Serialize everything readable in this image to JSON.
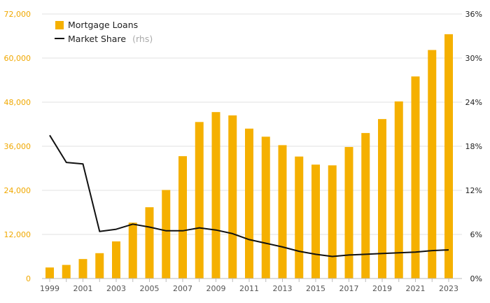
{
  "chart_data": {
    "type": "bar",
    "x": [
      1999,
      2000,
      2001,
      2002,
      2003,
      2004,
      2005,
      2006,
      2007,
      2008,
      2009,
      2010,
      2011,
      2012,
      2013,
      2014,
      2015,
      2016,
      2017,
      2018,
      2019,
      2020,
      2021,
      2022,
      2023
    ],
    "x_tick_labels": [
      "1999",
      "2001",
      "2003",
      "2005",
      "2007",
      "2009",
      "2011",
      "2013",
      "2015",
      "2017",
      "2019",
      "2021",
      "2023"
    ],
    "series": [
      {
        "name": "Mortgage Loans",
        "type": "bar",
        "axis": "left",
        "color": "#f5b000",
        "values": [
          3000,
          3700,
          5300,
          6900,
          10100,
          15200,
          19400,
          24100,
          33300,
          42600,
          45300,
          44400,
          40800,
          38600,
          36300,
          33200,
          31000,
          30800,
          35800,
          39600,
          43400,
          48200,
          55000,
          62200,
          66500
        ]
      },
      {
        "name": "Market Share",
        "type": "line",
        "axis": "right",
        "color": "#111111",
        "values": [
          19.5,
          15.8,
          15.6,
          6.4,
          6.7,
          7.4,
          7.0,
          6.5,
          6.5,
          6.9,
          6.6,
          6.1,
          5.3,
          4.8,
          4.3,
          3.7,
          3.3,
          3.0,
          3.2,
          3.3,
          3.4,
          3.5,
          3.6,
          3.8,
          3.9
        ]
      }
    ],
    "y_left": {
      "ylim": [
        0,
        72000
      ],
      "tick_labels": [
        "0",
        "12,000",
        "24,000",
        "36,000",
        "48,000",
        "60,000",
        "72,000"
      ],
      "color": "#f0a800"
    },
    "y_right": {
      "ylim": [
        0,
        36
      ],
      "tick_labels": [
        "0%",
        "6%",
        "12%",
        "18%",
        "24%",
        "30%",
        "36%"
      ],
      "color": "#222222"
    },
    "legend": {
      "placement": "top-left",
      "entries": [
        {
          "label": "Mortgage Loans",
          "note": ""
        },
        {
          "label": "Market Share",
          "note": "(rhs)"
        }
      ]
    },
    "grid": true,
    "title": "",
    "xlabel": "",
    "ylabel": ""
  }
}
